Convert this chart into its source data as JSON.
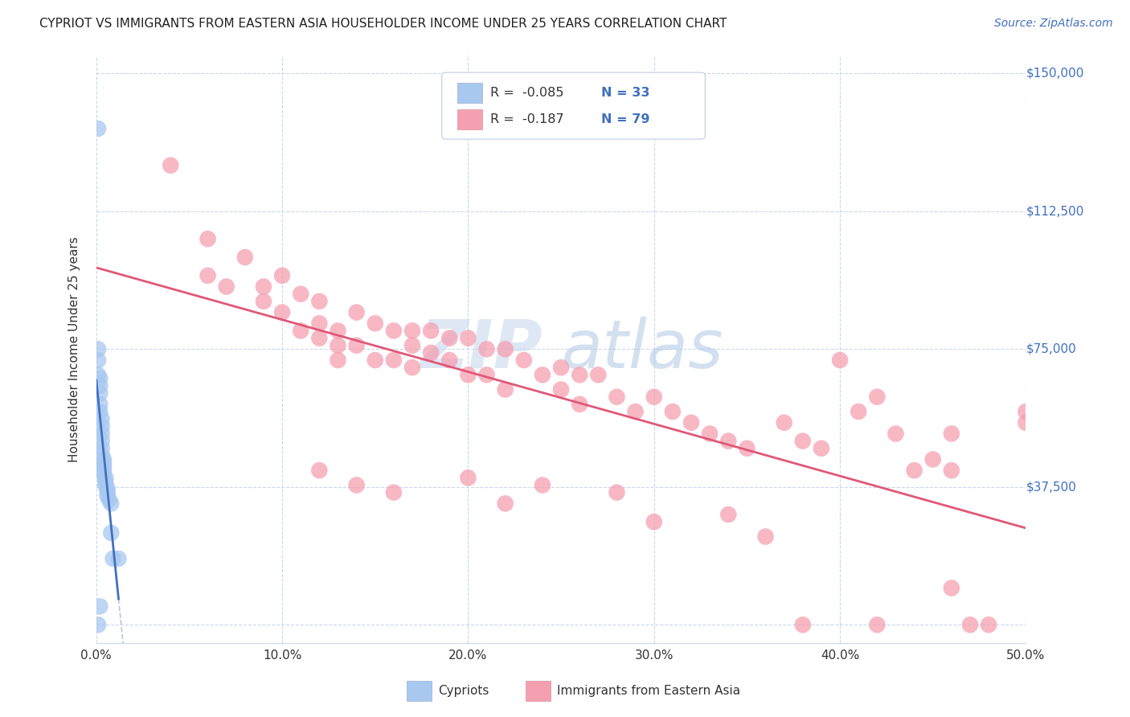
{
  "title": "CYPRIOT VS IMMIGRANTS FROM EASTERN ASIA HOUSEHOLDER INCOME UNDER 25 YEARS CORRELATION CHART",
  "source": "Source: ZipAtlas.com",
  "ylabel": "Householder Income Under 25 years",
  "xlim": [
    0.0,
    0.5
  ],
  "ylim": [
    -5000,
    155000
  ],
  "yticks": [
    0,
    37500,
    75000,
    112500,
    150000
  ],
  "ytick_labels": [
    "",
    "$37,500",
    "$75,000",
    "$112,500",
    "$150,000"
  ],
  "xticks": [
    0.0,
    0.1,
    0.2,
    0.3,
    0.4,
    0.5
  ],
  "xtick_labels": [
    "0.0%",
    "10.0%",
    "20.0%",
    "30.0%",
    "40.0%",
    "50.0%"
  ],
  "legend_R1": "R =  -0.085",
  "legend_N1": "N = 33",
  "legend_R2": "R =  -0.187",
  "legend_N2": "N = 79",
  "color_cypriot": "#a8c8f0",
  "color_immigrant": "#f5a0b0",
  "color_line_cypriot": "#4070c0",
  "color_line_immigrant": "#e05878",
  "color_dashed": "#b0c8e8",
  "watermark_zip": "ZIP",
  "watermark_atlas": "atlas",
  "background": "#ffffff",
  "grid_color": "#c8d8ec",
  "text_color": "#4070c0",
  "label_color": "#333333",
  "cypriot_x": [
    0.001,
    0.001,
    0.001,
    0.001,
    0.002,
    0.002,
    0.002,
    0.002,
    0.002,
    0.003,
    0.003,
    0.003,
    0.003,
    0.003,
    0.003,
    0.004,
    0.004,
    0.004,
    0.004,
    0.004,
    0.005,
    0.005,
    0.005,
    0.006,
    0.006,
    0.006,
    0.007,
    0.008,
    0.008,
    0.009,
    0.012,
    0.002,
    0.001
  ],
  "cypriot_y": [
    135000,
    75000,
    72000,
    68000,
    67000,
    65000,
    63000,
    60000,
    58000,
    56000,
    54000,
    52000,
    50000,
    48000,
    46000,
    45000,
    44000,
    43000,
    42000,
    41000,
    40000,
    39000,
    38000,
    37000,
    36000,
    35000,
    34000,
    33000,
    25000,
    18000,
    18000,
    5000,
    0
  ],
  "immigrant_x": [
    0.04,
    0.06,
    0.06,
    0.07,
    0.08,
    0.09,
    0.09,
    0.1,
    0.1,
    0.11,
    0.11,
    0.12,
    0.12,
    0.12,
    0.13,
    0.13,
    0.13,
    0.14,
    0.14,
    0.15,
    0.15,
    0.16,
    0.16,
    0.17,
    0.17,
    0.17,
    0.18,
    0.18,
    0.19,
    0.19,
    0.2,
    0.2,
    0.21,
    0.21,
    0.22,
    0.22,
    0.23,
    0.24,
    0.25,
    0.25,
    0.26,
    0.26,
    0.27,
    0.28,
    0.29,
    0.3,
    0.31,
    0.32,
    0.33,
    0.34,
    0.35,
    0.37,
    0.38,
    0.39,
    0.4,
    0.41,
    0.42,
    0.43,
    0.44,
    0.45,
    0.46,
    0.46,
    0.47,
    0.48,
    0.5,
    0.5,
    0.12,
    0.14,
    0.16,
    0.2,
    0.22,
    0.24,
    0.28,
    0.3,
    0.34,
    0.36,
    0.38,
    0.42,
    0.46
  ],
  "immigrant_y": [
    125000,
    105000,
    95000,
    92000,
    100000,
    92000,
    88000,
    95000,
    85000,
    90000,
    80000,
    88000,
    82000,
    78000,
    80000,
    76000,
    72000,
    85000,
    76000,
    82000,
    72000,
    80000,
    72000,
    80000,
    76000,
    70000,
    80000,
    74000,
    78000,
    72000,
    78000,
    68000,
    75000,
    68000,
    75000,
    64000,
    72000,
    68000,
    70000,
    64000,
    68000,
    60000,
    68000,
    62000,
    58000,
    62000,
    58000,
    55000,
    52000,
    50000,
    48000,
    55000,
    50000,
    48000,
    72000,
    58000,
    62000,
    52000,
    42000,
    45000,
    42000,
    52000,
    0,
    0,
    58000,
    55000,
    42000,
    38000,
    36000,
    40000,
    33000,
    38000,
    36000,
    28000,
    30000,
    24000,
    0,
    0,
    10000
  ]
}
